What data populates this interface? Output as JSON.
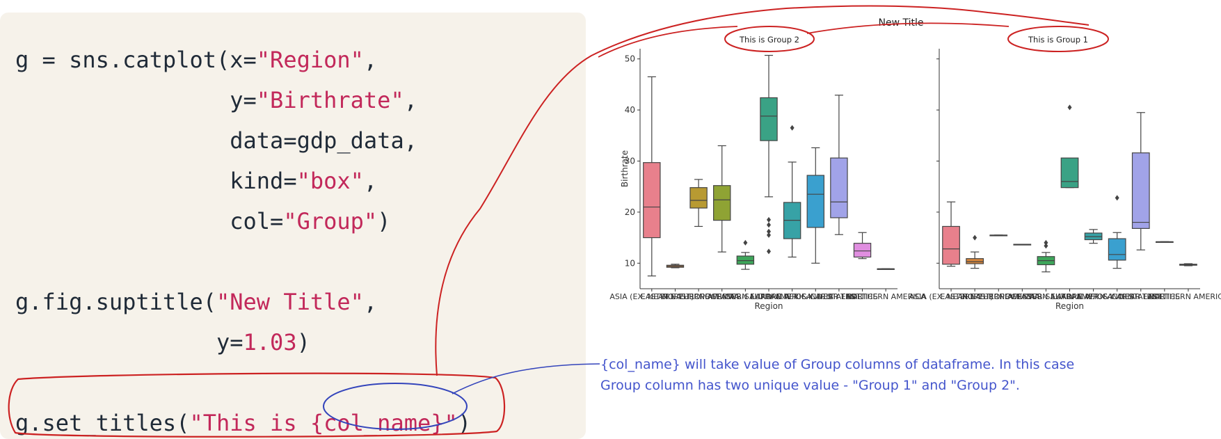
{
  "code": {
    "lines": [
      [
        {
          "t": "g = sns.catplot(x=",
          "c": "plain"
        },
        {
          "t": "\"Region\"",
          "c": "str"
        },
        {
          "t": ",",
          "c": "plain"
        }
      ],
      [
        {
          "t": "                y=",
          "c": "plain"
        },
        {
          "t": "\"Birthrate\"",
          "c": "str"
        },
        {
          "t": ",",
          "c": "plain"
        }
      ],
      [
        {
          "t": "                data=gdp_data,",
          "c": "plain"
        }
      ],
      [
        {
          "t": "                kind=",
          "c": "plain"
        },
        {
          "t": "\"box\"",
          "c": "str"
        },
        {
          "t": ",",
          "c": "plain"
        }
      ],
      [
        {
          "t": "                col=",
          "c": "plain"
        },
        {
          "t": "\"Group\"",
          "c": "str"
        },
        {
          "t": ")",
          "c": "plain"
        }
      ],
      [],
      [
        {
          "t": "g.fig.suptitle(",
          "c": "plain"
        },
        {
          "t": "\"New Title\"",
          "c": "str"
        },
        {
          "t": ",",
          "c": "plain"
        }
      ],
      [
        {
          "t": "               y=",
          "c": "plain"
        },
        {
          "t": "1.03",
          "c": "num"
        },
        {
          "t": ")",
          "c": "plain"
        }
      ],
      [],
      [
        {
          "t": "g.set_titles(",
          "c": "plain"
        },
        {
          "t": "\"This is {col_name}\"",
          "c": "str"
        },
        {
          "t": ")",
          "c": "plain"
        }
      ]
    ]
  },
  "colors": {
    "code_bg": "#f6f2ea",
    "code_text": "#1f2a37",
    "code_string": "#c2285a",
    "annotation_red": "#cc2222",
    "annotation_blue": "#4455cc"
  },
  "chart_data": {
    "type": "box",
    "suptitle": "New Title",
    "ylabel": "Birthrate",
    "xlabel": "Region",
    "ylim": [
      5,
      52
    ],
    "yticks": [
      10,
      20,
      30,
      40,
      50
    ],
    "facets": [
      {
        "title": "This is Group 2",
        "categories": [
          "ASIA (EX. NEAR EAST)",
          "EASTERN EUROPE",
          "NORTHERN AFRICA",
          "OCEANIA",
          "WESTERN EUROPE",
          "SUB-SAHARAN AFRICA",
          "LATIN AMER. & CARIB",
          "C.W. OF IND. STATES",
          "NEAR EAST",
          "BALTICS",
          "NORTHERN AMERICA"
        ],
        "boxes": [
          {
            "category": "ASIA (EX. NEAR EAST)",
            "color": "#e8808c",
            "whislo": 7.5,
            "q1": 15,
            "median": 21,
            "q3": 29.7,
            "whishi": 46.5,
            "fliers": []
          },
          {
            "category": "EASTERN EUROPE",
            "color": "#d8873c",
            "whislo": 9.1,
            "q1": 9.2,
            "median": 9.4,
            "q3": 9.6,
            "whishi": 9.8,
            "fliers": []
          },
          {
            "category": "NORTHERN AFRICA",
            "color": "#b89a32",
            "whislo": 17.2,
            "q1": 20.8,
            "median": 22.3,
            "q3": 24.8,
            "whishi": 26.4,
            "fliers": []
          },
          {
            "category": "OCEANIA",
            "color": "#8fa334",
            "whislo": 12.2,
            "q1": 18.4,
            "median": 22.4,
            "q3": 25.2,
            "whishi": 33,
            "fliers": []
          },
          {
            "category": "WESTERN EUROPE",
            "color": "#3da65a",
            "whislo": 8.8,
            "q1": 9.8,
            "median": 10.5,
            "q3": 11.4,
            "whishi": 12.1,
            "fliers": [
              14
            ]
          },
          {
            "category": "SUB-SAHARAN AFRICA",
            "color": "#3aa285",
            "whislo": 23,
            "q1": 34,
            "median": 38.8,
            "q3": 42.4,
            "whishi": 50.7,
            "fliers": [
              18.5,
              17.5,
              16.2,
              15.5,
              12.3
            ]
          },
          {
            "category": "LATIN AMER. & CARIB",
            "color": "#37a2a6",
            "whislo": 11.2,
            "q1": 14.8,
            "median": 18.4,
            "q3": 21.9,
            "whishi": 29.8,
            "fliers": [
              36.5
            ]
          },
          {
            "category": "C.W. OF IND. STATES",
            "color": "#3aa0cf",
            "whislo": 10,
            "q1": 17,
            "median": 23.5,
            "q3": 27.2,
            "whishi": 32.6,
            "fliers": []
          },
          {
            "category": "NEAR EAST",
            "color": "#a1a3e8",
            "whislo": 15.6,
            "q1": 18.9,
            "median": 22,
            "q3": 30.6,
            "whishi": 42.9,
            "fliers": []
          },
          {
            "category": "BALTICS",
            "color": "#e08ee0",
            "whislo": 10.9,
            "q1": 11.2,
            "median": 12.4,
            "q3": 13.9,
            "whishi": 16,
            "fliers": []
          },
          {
            "category": "NORTHERN AMERICA",
            "color": "#e784b7",
            "whislo": 8.9,
            "q1": 8.9,
            "median": 8.9,
            "q3": 8.9,
            "whishi": 8.9,
            "fliers": []
          }
        ]
      },
      {
        "title": "This is Group 1",
        "categories": [
          "ASIA (EX. NEAR EAST)",
          "EASTERN EUROPE",
          "NORTHERN AFRICA",
          "OCEANIA",
          "WESTERN EUROPE",
          "SUB-SAHARAN AFRICA",
          "LATIN AMER. & CARIB",
          "C.W. OF IND. STATES",
          "NEAR EAST",
          "BALTICS",
          "NORTHERN AMERICA"
        ],
        "boxes": [
          {
            "category": "ASIA (EX. NEAR EAST)",
            "color": "#e8808c",
            "whislo": 9.4,
            "q1": 9.8,
            "median": 12.8,
            "q3": 17.2,
            "whishi": 22,
            "fliers": []
          },
          {
            "category": "EASTERN EUROPE",
            "color": "#d8873c",
            "whislo": 9,
            "q1": 9.9,
            "median": 10.3,
            "q3": 10.9,
            "whishi": 12.2,
            "fliers": [
              15
            ]
          },
          {
            "category": "NORTHERN AFRICA",
            "color": "#b89a32",
            "whislo": 15.5,
            "q1": 15.5,
            "median": 15.5,
            "q3": 15.5,
            "whishi": 15.5,
            "fliers": []
          },
          {
            "category": "OCEANIA",
            "color": "#8fa334",
            "whislo": 13.7,
            "q1": 13.7,
            "median": 13.7,
            "q3": 13.7,
            "whishi": 13.7,
            "fliers": []
          },
          {
            "category": "WESTERN EUROPE",
            "color": "#3da65a",
            "whislo": 8.3,
            "q1": 9.7,
            "median": 10.5,
            "q3": 11.3,
            "whishi": 12.1,
            "fliers": [
              14,
              13.4
            ]
          },
          {
            "category": "SUB-SAHARAN AFRICA",
            "color": "#3aa285",
            "whislo": 24.8,
            "q1": 24.8,
            "median": 26,
            "q3": 30.6,
            "whishi": 30.6,
            "fliers": [
              40.5
            ]
          },
          {
            "category": "LATIN AMER. & CARIB",
            "color": "#37a2a6",
            "whislo": 13.9,
            "q1": 14.6,
            "median": 15.2,
            "q3": 15.9,
            "whishi": 16.6,
            "fliers": []
          },
          {
            "category": "C.W. OF IND. STATES",
            "color": "#3aa0cf",
            "whislo": 9,
            "q1": 10.6,
            "median": 11.7,
            "q3": 14.8,
            "whishi": 16,
            "fliers": [
              22.8
            ]
          },
          {
            "category": "NEAR EAST",
            "color": "#a1a3e8",
            "whislo": 12.6,
            "q1": 16.8,
            "median": 18,
            "q3": 31.6,
            "whishi": 39.5,
            "fliers": []
          },
          {
            "category": "BALTICS",
            "color": "#e08ee0",
            "whislo": 14.2,
            "q1": 14.2,
            "median": 14.2,
            "q3": 14.2,
            "whishi": 14.2,
            "fliers": []
          },
          {
            "category": "NORTHERN AMERICA",
            "color": "#e784b7",
            "whislo": 9.5,
            "q1": 9.6,
            "median": 9.7,
            "q3": 9.8,
            "whishi": 9.9,
            "fliers": []
          }
        ]
      }
    ]
  },
  "annotation": {
    "note_line1": "{col_name} will take value of Group columns of dataframe. In this case",
    "note_line2": "Group column has two unique value - \"Group 1\" and \"Group 2\"."
  }
}
